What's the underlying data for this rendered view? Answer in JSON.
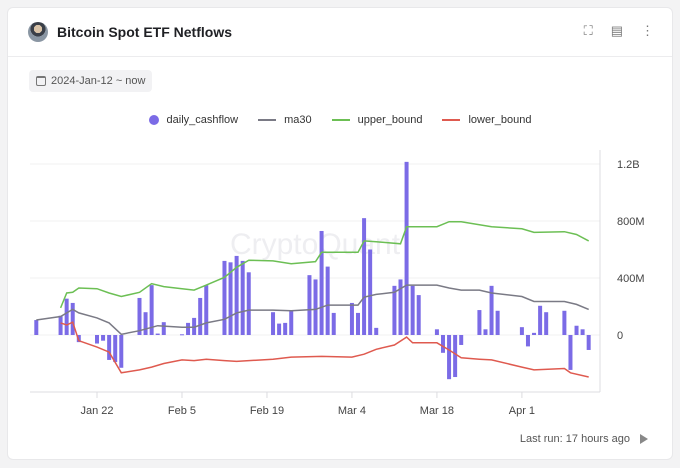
{
  "header": {
    "title": "Bitcoin Spot ETF Netflows",
    "icons": [
      "fullscreen-icon",
      "code-console-icon",
      "more-vertical-icon"
    ]
  },
  "date_range": "2024-Jan-12 ~ now",
  "footer": {
    "last_run": "Last run: 17 hours ago"
  },
  "watermark": "CryptoQuant",
  "colors": {
    "daily_cashflow": "#7b6be6",
    "ma30": "#7a7a85",
    "upper_bound": "#6cbf54",
    "lower_bound": "#df5a4f"
  },
  "chart_data": {
    "type": "bar+line",
    "legend": [
      "daily_cashflow",
      "ma30",
      "upper_bound",
      "lower_bound"
    ],
    "legend_position": "top",
    "y_ticks": [
      "1.2B",
      "800M",
      "400M",
      "0"
    ],
    "y_tick_values": [
      1200,
      800,
      400,
      0
    ],
    "y_unit": "M USD",
    "ylim": [
      -400,
      1250
    ],
    "x_ticks": [
      {
        "label": "Jan 22",
        "date": "2024-01-22"
      },
      {
        "label": "Feb 5",
        "date": "2024-02-05"
      },
      {
        "label": "Feb 19",
        "date": "2024-02-19"
      },
      {
        "label": "Mar 4",
        "date": "2024-03-04"
      },
      {
        "label": "Mar 18",
        "date": "2024-03-18"
      },
      {
        "label": "Apr 1",
        "date": "2024-04-01"
      }
    ],
    "xlim": [
      "2024-01-11",
      "2024-04-13"
    ],
    "grid": true,
    "daily_cashflow": [
      [
        "2024-01-12",
        105
      ],
      [
        "2024-01-16",
        135
      ],
      [
        "2024-01-17",
        255
      ],
      [
        "2024-01-18",
        225
      ],
      [
        "2024-01-19",
        -50
      ],
      [
        "2024-01-22",
        -60
      ],
      [
        "2024-01-23",
        -40
      ],
      [
        "2024-01-24",
        -175
      ],
      [
        "2024-01-25",
        -190
      ],
      [
        "2024-01-26",
        -230
      ],
      [
        "2024-01-29",
        260
      ],
      [
        "2024-01-30",
        160
      ],
      [
        "2024-01-31",
        350
      ],
      [
        "2024-02-01",
        10
      ],
      [
        "2024-02-02",
        90
      ],
      [
        "2024-02-05",
        5
      ],
      [
        "2024-02-06",
        85
      ],
      [
        "2024-02-07",
        120
      ],
      [
        "2024-02-08",
        260
      ],
      [
        "2024-02-09",
        350
      ],
      [
        "2024-02-12",
        520
      ],
      [
        "2024-02-13",
        510
      ],
      [
        "2024-02-14",
        555
      ],
      [
        "2024-02-15",
        520
      ],
      [
        "2024-02-16",
        440
      ],
      [
        "2024-02-20",
        160
      ],
      [
        "2024-02-21",
        80
      ],
      [
        "2024-02-22",
        85
      ],
      [
        "2024-02-23",
        170
      ],
      [
        "2024-02-26",
        420
      ],
      [
        "2024-02-27",
        390
      ],
      [
        "2024-02-28",
        730
      ],
      [
        "2024-02-29",
        480
      ],
      [
        "2024-03-01",
        155
      ],
      [
        "2024-03-04",
        225
      ],
      [
        "2024-03-05",
        155
      ],
      [
        "2024-03-06",
        820
      ],
      [
        "2024-03-07",
        600
      ],
      [
        "2024-03-08",
        50
      ],
      [
        "2024-03-11",
        345
      ],
      [
        "2024-03-12",
        390
      ],
      [
        "2024-03-13",
        1215
      ],
      [
        "2024-03-14",
        345
      ],
      [
        "2024-03-15",
        280
      ],
      [
        "2024-03-18",
        40
      ],
      [
        "2024-03-19",
        -125
      ],
      [
        "2024-03-20",
        -310
      ],
      [
        "2024-03-21",
        -295
      ],
      [
        "2024-03-22",
        -70
      ],
      [
        "2024-03-25",
        175
      ],
      [
        "2024-03-26",
        40
      ],
      [
        "2024-03-27",
        345
      ],
      [
        "2024-03-28",
        170
      ],
      [
        "2024-04-01",
        55
      ],
      [
        "2024-04-02",
        -80
      ],
      [
        "2024-04-03",
        15
      ],
      [
        "2024-04-04",
        205
      ],
      [
        "2024-04-05",
        160
      ],
      [
        "2024-04-08",
        170
      ],
      [
        "2024-04-09",
        -245
      ],
      [
        "2024-04-10",
        65
      ],
      [
        "2024-04-11",
        40
      ],
      [
        "2024-04-12",
        -105
      ]
    ],
    "ma30": [
      [
        "2024-01-12",
        105
      ],
      [
        "2024-01-16",
        130
      ],
      [
        "2024-01-18",
        180
      ],
      [
        "2024-01-19",
        155
      ],
      [
        "2024-01-22",
        120
      ],
      [
        "2024-01-24",
        85
      ],
      [
        "2024-01-26",
        5
      ],
      [
        "2024-01-29",
        30
      ],
      [
        "2024-02-01",
        65
      ],
      [
        "2024-02-05",
        55
      ],
      [
        "2024-02-07",
        55
      ],
      [
        "2024-02-09",
        85
      ],
      [
        "2024-02-12",
        110
      ],
      [
        "2024-02-14",
        155
      ],
      [
        "2024-02-16",
        175
      ],
      [
        "2024-02-20",
        175
      ],
      [
        "2024-02-23",
        170
      ],
      [
        "2024-02-27",
        180
      ],
      [
        "2024-02-29",
        210
      ],
      [
        "2024-03-05",
        210
      ],
      [
        "2024-03-06",
        265
      ],
      [
        "2024-03-08",
        285
      ],
      [
        "2024-03-11",
        300
      ],
      [
        "2024-03-13",
        350
      ],
      [
        "2024-03-18",
        350
      ],
      [
        "2024-03-20",
        330
      ],
      [
        "2024-03-22",
        315
      ],
      [
        "2024-03-25",
        315
      ],
      [
        "2024-03-27",
        295
      ],
      [
        "2024-04-01",
        270
      ],
      [
        "2024-04-03",
        235
      ],
      [
        "2024-04-08",
        235
      ],
      [
        "2024-04-10",
        215
      ],
      [
        "2024-04-12",
        180
      ]
    ],
    "upper_bound": [
      [
        "2024-01-16",
        190
      ],
      [
        "2024-01-17",
        295
      ],
      [
        "2024-01-18",
        300
      ],
      [
        "2024-01-19",
        330
      ],
      [
        "2024-01-22",
        325
      ],
      [
        "2024-01-24",
        295
      ],
      [
        "2024-01-26",
        270
      ],
      [
        "2024-01-29",
        300
      ],
      [
        "2024-01-31",
        360
      ],
      [
        "2024-02-02",
        340
      ],
      [
        "2024-02-05",
        325
      ],
      [
        "2024-02-07",
        315
      ],
      [
        "2024-02-09",
        350
      ],
      [
        "2024-02-12",
        405
      ],
      [
        "2024-02-14",
        475
      ],
      [
        "2024-02-16",
        525
      ],
      [
        "2024-02-20",
        520
      ],
      [
        "2024-02-23",
        500
      ],
      [
        "2024-02-27",
        515
      ],
      [
        "2024-02-28",
        580
      ],
      [
        "2024-03-05",
        580
      ],
      [
        "2024-03-06",
        660
      ],
      [
        "2024-03-08",
        655
      ],
      [
        "2024-03-12",
        640
      ],
      [
        "2024-03-13",
        760
      ],
      [
        "2024-03-18",
        760
      ],
      [
        "2024-03-20",
        795
      ],
      [
        "2024-03-22",
        795
      ],
      [
        "2024-03-27",
        760
      ],
      [
        "2024-04-01",
        745
      ],
      [
        "2024-04-03",
        720
      ],
      [
        "2024-04-08",
        725
      ],
      [
        "2024-04-10",
        705
      ],
      [
        "2024-04-12",
        660
      ]
    ],
    "lower_bound": [
      [
        "2024-01-16",
        85
      ],
      [
        "2024-01-17",
        70
      ],
      [
        "2024-01-18",
        90
      ],
      [
        "2024-01-19",
        -40
      ],
      [
        "2024-01-22",
        -85
      ],
      [
        "2024-01-24",
        -120
      ],
      [
        "2024-01-26",
        -265
      ],
      [
        "2024-01-29",
        -245
      ],
      [
        "2024-01-31",
        -225
      ],
      [
        "2024-02-02",
        -200
      ],
      [
        "2024-02-05",
        -175
      ],
      [
        "2024-02-07",
        -180
      ],
      [
        "2024-02-09",
        -170
      ],
      [
        "2024-02-12",
        -180
      ],
      [
        "2024-02-14",
        -185
      ],
      [
        "2024-02-20",
        -170
      ],
      [
        "2024-02-23",
        -155
      ],
      [
        "2024-02-28",
        -150
      ],
      [
        "2024-03-04",
        -155
      ],
      [
        "2024-03-06",
        -135
      ],
      [
        "2024-03-08",
        -100
      ],
      [
        "2024-03-11",
        -70
      ],
      [
        "2024-03-13",
        -15
      ],
      [
        "2024-03-14",
        -55
      ],
      [
        "2024-03-18",
        -55
      ],
      [
        "2024-03-20",
        -105
      ],
      [
        "2024-03-22",
        -160
      ],
      [
        "2024-03-25",
        -170
      ],
      [
        "2024-03-27",
        -175
      ],
      [
        "2024-04-01",
        -225
      ],
      [
        "2024-04-03",
        -245
      ],
      [
        "2024-04-08",
        -235
      ],
      [
        "2024-04-09",
        -265
      ],
      [
        "2024-04-12",
        -295
      ]
    ]
  }
}
